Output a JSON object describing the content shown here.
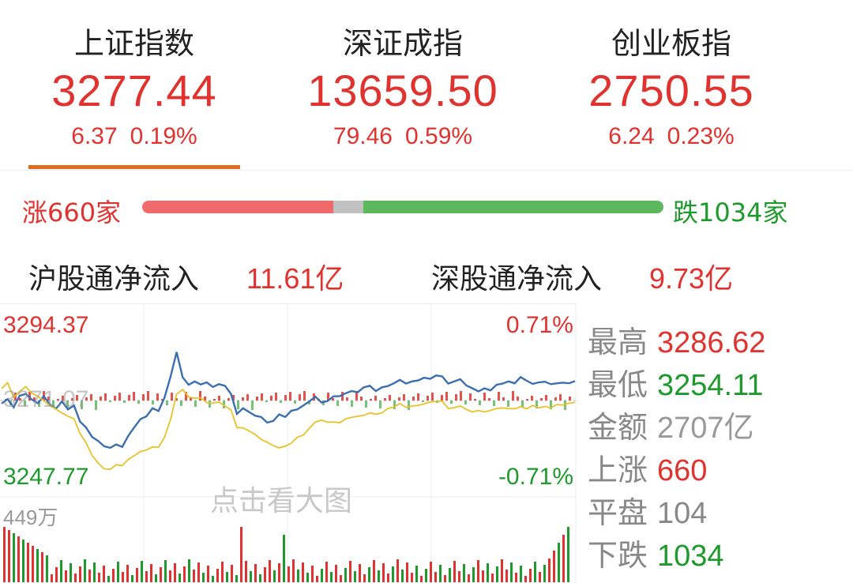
{
  "indices": [
    {
      "name": "上证指数",
      "price": "3277.44",
      "change": "6.37",
      "pct": "0.19%"
    },
    {
      "name": "深证成指",
      "price": "13659.50",
      "change": "79.46",
      "pct": "0.59%"
    },
    {
      "name": "创业板指",
      "price": "2750.55",
      "change": "6.24",
      "pct": "0.23%"
    }
  ],
  "breadth": {
    "up_label": "涨660家",
    "down_label": "跌1034家",
    "up": 660,
    "flat": 104,
    "down": 1034
  },
  "flows": [
    {
      "label": "沪股通净流入",
      "value": "11.61亿"
    },
    {
      "label": "深股通净流入",
      "value": "9.73亿"
    }
  ],
  "chart": {
    "high": "3294.37",
    "low": "3247.77",
    "pct_high": "0.71%",
    "pct_low": "-0.71%",
    "pre_close": "3271.07",
    "volume_max": "449万",
    "watermark": "点击看大图"
  },
  "chart_data": {
    "type": "line",
    "ylim": [
      3247.77,
      3294.37
    ],
    "pre_close": 3271.07,
    "series": [
      {
        "values": [
          3270.1,
          3271.5,
          3268.9,
          3272.6,
          3273.2,
          3271.4,
          3270.2,
          3272.5,
          3269.8,
          3268.4,
          3270.8,
          3268.2,
          3269.5,
          3264.3,
          3262.4,
          3259.4,
          3258.1,
          3256.4,
          3255.9,
          3257.0,
          3256.2,
          3259.8,
          3262.5,
          3265.1,
          3266.0,
          3268.6,
          3267.7,
          3272.0,
          3278.8,
          3286.6,
          3278.5,
          3276.1,
          3277.2,
          3276.2,
          3276.9,
          3275.4,
          3276.3,
          3275.8,
          3273.2,
          3266.8,
          3268.6,
          3267.4,
          3266.2,
          3265.8,
          3264.0,
          3264.5,
          3266.6,
          3265.8,
          3267.8,
          3268.2,
          3269.5,
          3270.8,
          3272.3,
          3270.4,
          3270.9,
          3272.4,
          3272.5,
          3273.4,
          3274.1,
          3273.7,
          3275.3,
          3275.8,
          3274.1,
          3275.3,
          3275.7,
          3276.6,
          3277.7,
          3276.5,
          3277.2,
          3277.5,
          3278.4,
          3278.0,
          3279.1,
          3278.8,
          3276.5,
          3277.2,
          3277.9,
          3275.9,
          3275.0,
          3274.0,
          3275.0,
          3274.3,
          3276.1,
          3276.5,
          3277.2,
          3276.6,
          3278.6,
          3277.4,
          3276.4,
          3276.9,
          3277.1,
          3276.3,
          3276.6,
          3276.8,
          3276.6,
          3277.3
        ]
      },
      {
        "values": [
          3274.9,
          3276.8,
          3272.0,
          3274.0,
          3275.5,
          3273.4,
          3272.4,
          3271.0,
          3269.4,
          3268.3,
          3267.1,
          3266.0,
          3265.2,
          3260.5,
          3257.5,
          3253.5,
          3251.0,
          3249.2,
          3249.0,
          3250.5,
          3250.2,
          3252.2,
          3253.4,
          3254.7,
          3255.2,
          3256.2,
          3256.1,
          3259.3,
          3265.1,
          3273.1,
          3274.6,
          3272.2,
          3271.8,
          3271.9,
          3270.4,
          3270.2,
          3270.6,
          3269.3,
          3268.1,
          3262.4,
          3262.3,
          3261.3,
          3260.2,
          3258.6,
          3257.7,
          3256.6,
          3255.9,
          3256.4,
          3257.4,
          3259.3,
          3260.0,
          3262.2,
          3264.2,
          3264.8,
          3264.1,
          3264.2,
          3263.9,
          3265.2,
          3265.7,
          3266.0,
          3266.3,
          3267.1,
          3266.7,
          3267.1,
          3268.5,
          3269.0,
          3270.1,
          3268.9,
          3269.3,
          3269.5,
          3270.0,
          3270.6,
          3270.8,
          3270.9,
          3268.5,
          3268.8,
          3269.3,
          3268.2,
          3267.4,
          3267.9,
          3267.4,
          3267.9,
          3268.5,
          3268.7,
          3268.5,
          3268.4,
          3269.1,
          3268.4,
          3269.5,
          3268.7,
          3269.2,
          3268.7,
          3269.8,
          3269.6,
          3270.2,
          3270.5
        ]
      }
    ]
  },
  "stats": [
    {
      "key": "最高",
      "value": "3286.62",
      "color": "#e0322e"
    },
    {
      "key": "最低",
      "value": "3254.11",
      "color": "#1e9a2c"
    },
    {
      "key": "金额",
      "value": "2707亿",
      "color": "#999999"
    },
    {
      "key": "上涨",
      "value": "660",
      "color": "#e0322e"
    },
    {
      "key": "平盘",
      "value": "104",
      "color": "#888888"
    },
    {
      "key": "下跌",
      "value": "1034",
      "color": "#1e9a2c"
    }
  ]
}
